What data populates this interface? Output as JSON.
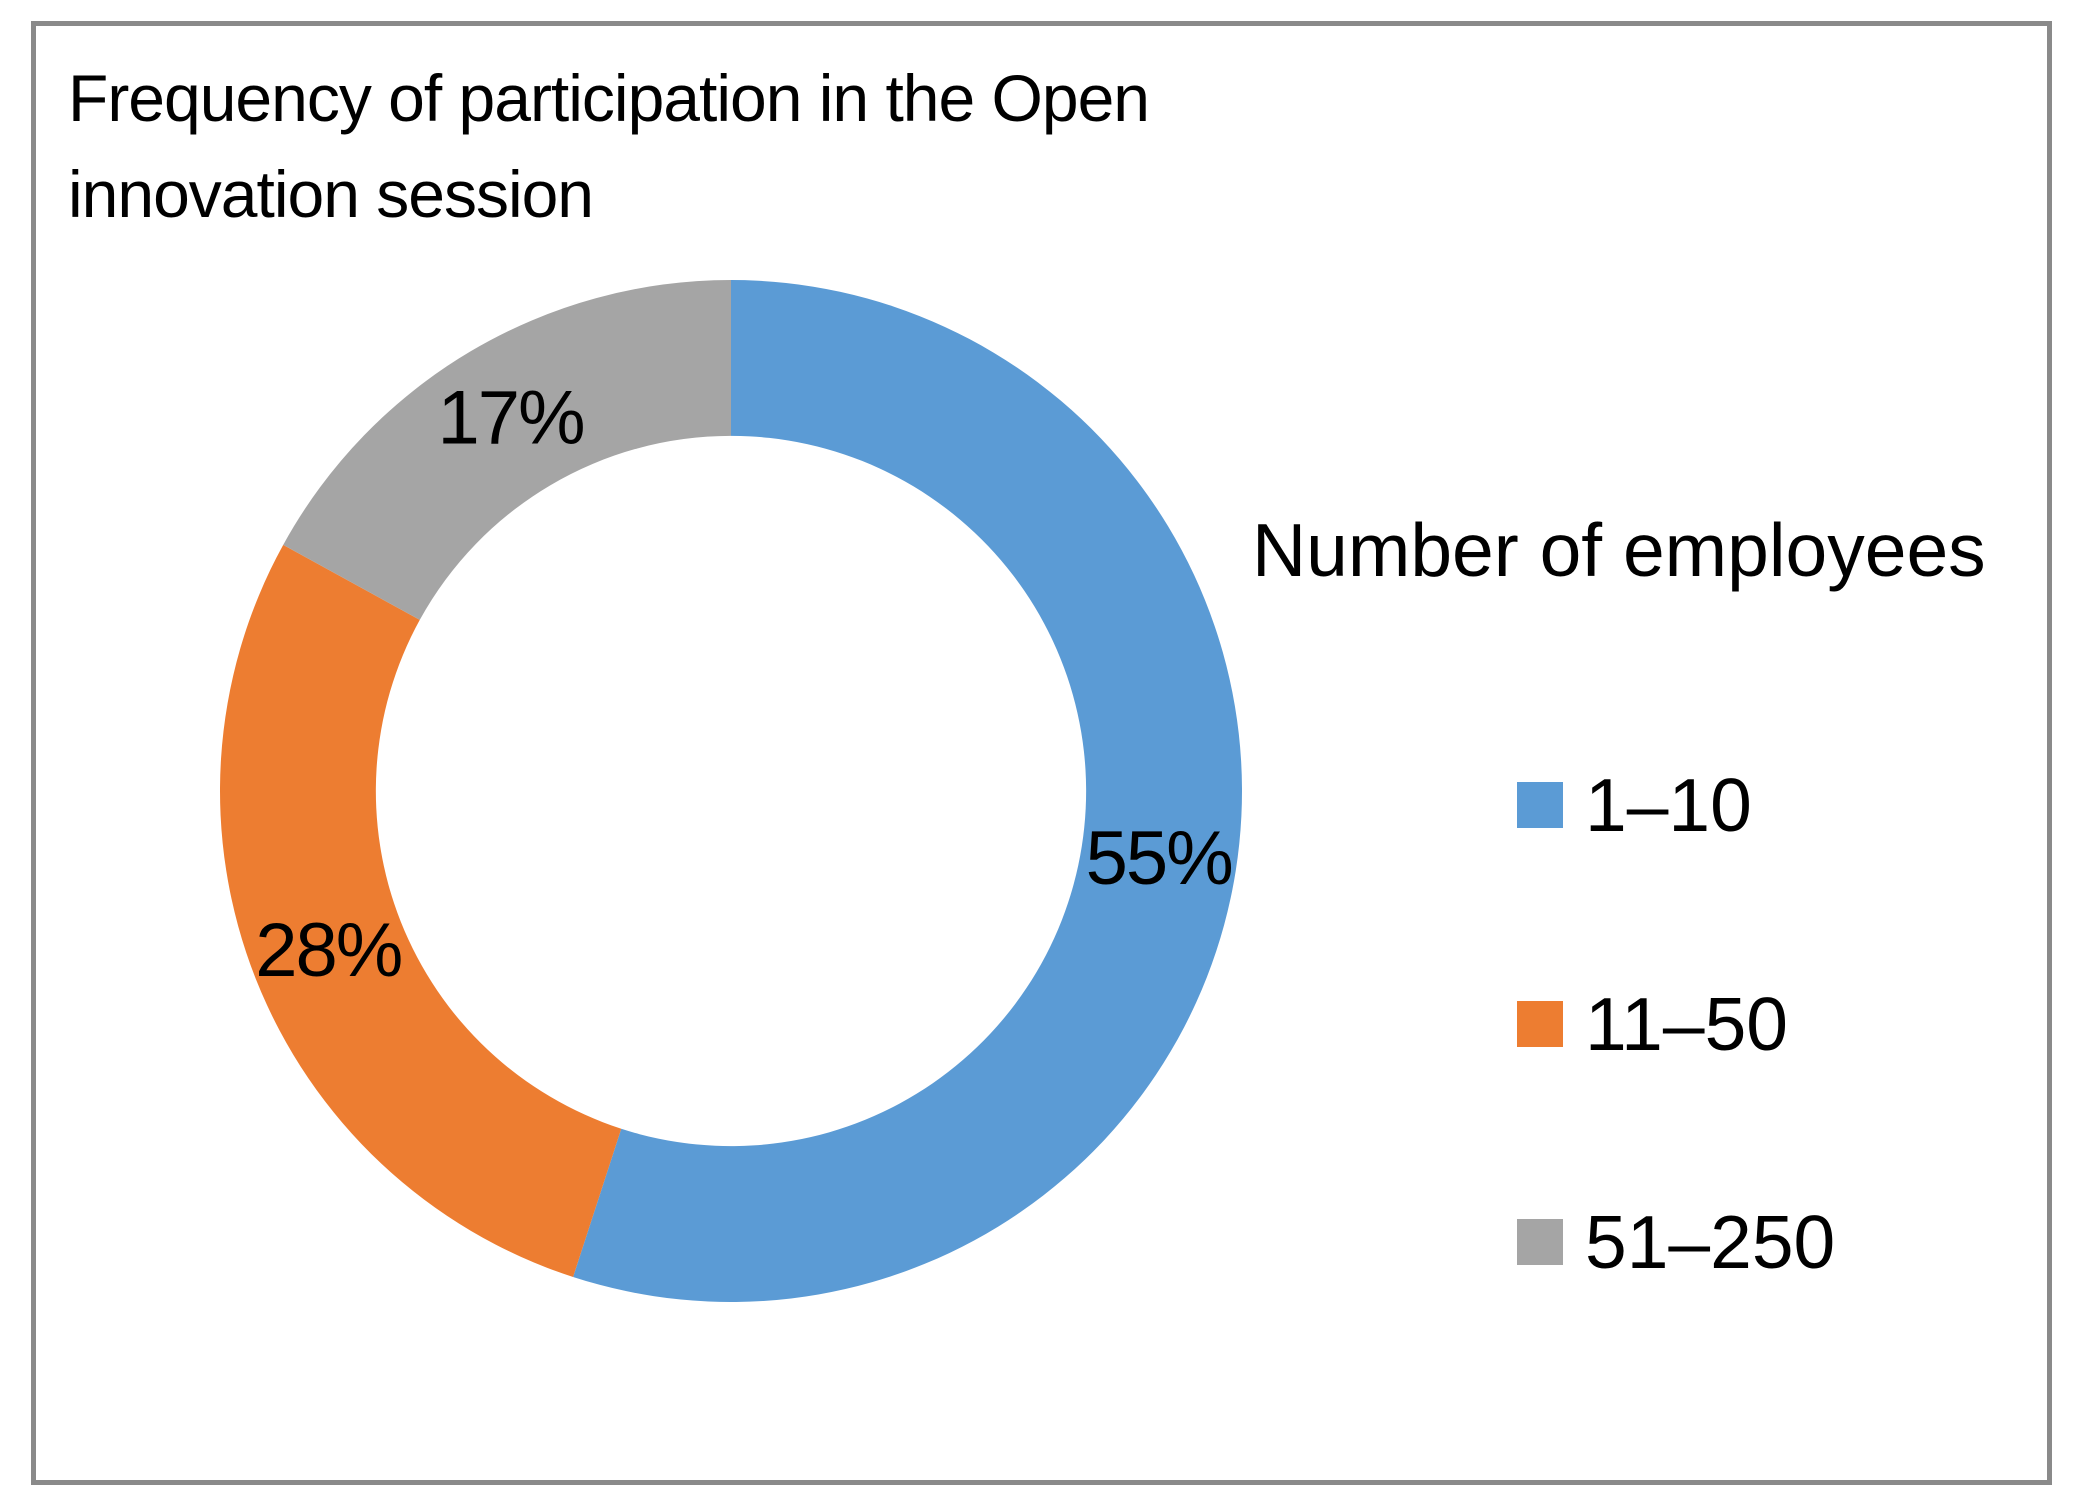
{
  "title": "Frequency of participation in the Open\ninnovation session",
  "chart_data": {
    "type": "pie",
    "subtype": "donut",
    "title": "Frequency of participation in the Open innovation session",
    "categories": [
      "1–10",
      "11–50",
      "51–250"
    ],
    "values": [
      55,
      28,
      17
    ],
    "unit": "percent",
    "data_labels": [
      "55%",
      "28%",
      "17%"
    ],
    "colors": [
      "#5B9BD5",
      "#ED7D31",
      "#A5A5A5"
    ],
    "start_angle_deg": 0,
    "direction": "clockwise",
    "hole_ratio": 0.695,
    "legend_title": "Number of employees",
    "legend_position": "right",
    "label_position": "mid-ring"
  },
  "legend": {
    "title": "Number of employees",
    "items": [
      {
        "label": "1–10",
        "color": "#5B9BD5"
      },
      {
        "label": "11–50",
        "color": "#ED7D31"
      },
      {
        "label": "51–250",
        "color": "#A5A5A5"
      }
    ]
  },
  "frame": {
    "border_color": "#8a8a8a",
    "background": "#ffffff"
  }
}
